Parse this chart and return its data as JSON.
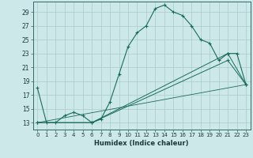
{
  "xlabel": "Humidex (Indice chaleur)",
  "bg_color": "#cce8e8",
  "grid_color": "#aacccc",
  "line_color": "#1a6b5a",
  "xlim": [
    -0.5,
    23.5
  ],
  "ylim": [
    12.0,
    30.5
  ],
  "xticks": [
    0,
    1,
    2,
    3,
    4,
    5,
    6,
    7,
    8,
    9,
    10,
    11,
    12,
    13,
    14,
    15,
    16,
    17,
    18,
    19,
    20,
    21,
    22,
    23
  ],
  "yticks": [
    13,
    15,
    17,
    19,
    21,
    23,
    25,
    27,
    29
  ],
  "line1_x": [
    0,
    1,
    2,
    3,
    4,
    5,
    6,
    7,
    8,
    9,
    10,
    11,
    12,
    13,
    14,
    15,
    16,
    17,
    18,
    19,
    20,
    21,
    22,
    23
  ],
  "line1_y": [
    18,
    13,
    13,
    14,
    14.5,
    14,
    13,
    13.5,
    16,
    20,
    24,
    26,
    27,
    29.5,
    30,
    29,
    28.5,
    27,
    25,
    24.5,
    22,
    23,
    23,
    18.5
  ],
  "line2_x": [
    0,
    6,
    21,
    23
  ],
  "line2_y": [
    13,
    13,
    23,
    18.5
  ],
  "line3_x": [
    0,
    6,
    21,
    23
  ],
  "line3_y": [
    13,
    13,
    22,
    18.5
  ],
  "line4_x": [
    0,
    23
  ],
  "line4_y": [
    13,
    18.5
  ]
}
